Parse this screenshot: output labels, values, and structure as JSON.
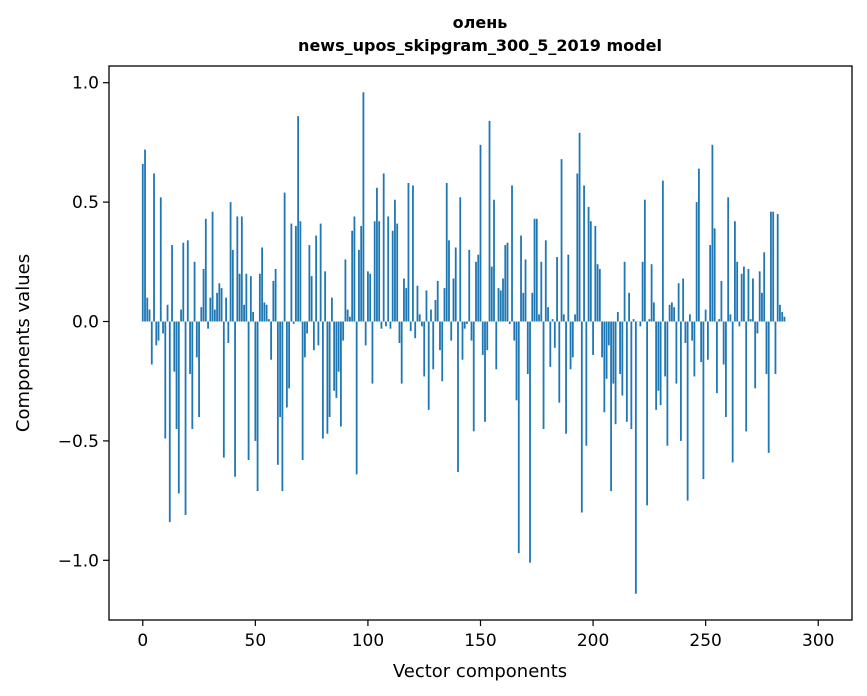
{
  "chart_data": {
    "type": "bar",
    "title_line1": "олень",
    "title_line2": "news_upos_skipgram_300_5_2019 model",
    "xlabel": "Vector components",
    "ylabel": "Components values",
    "xlim": [
      -15,
      315
    ],
    "ylim": [
      -1.25,
      1.07
    ],
    "xticks": [
      0,
      50,
      100,
      150,
      200,
      250,
      300
    ],
    "xtick_labels": [
      "0",
      "50",
      "100",
      "150",
      "200",
      "250",
      "300"
    ],
    "yticks": [
      -1.0,
      -0.5,
      0.0,
      0.5,
      1.0
    ],
    "ytick_labels": [
      "−1.0",
      "−0.5",
      "0.0",
      "0.5",
      "1.0"
    ],
    "bar_color": "#1f77b4",
    "grid": false,
    "legend": "none",
    "values": [
      0.66,
      0.72,
      0.1,
      0.05,
      -0.18,
      0.62,
      -0.1,
      -0.08,
      0.52,
      -0.05,
      -0.49,
      0.07,
      -0.84,
      0.32,
      -0.21,
      -0.45,
      -0.72,
      0.05,
      0.33,
      -0.81,
      0.34,
      -0.22,
      -0.45,
      0.25,
      -0.15,
      -0.4,
      0.06,
      0.22,
      0.43,
      -0.03,
      0.1,
      0.46,
      0.05,
      0.12,
      0.16,
      0.14,
      -0.57,
      0.1,
      -0.09,
      0.5,
      0.3,
      -0.65,
      0.44,
      0.2,
      0.44,
      0.07,
      0.2,
      -0.58,
      0.19,
      0.04,
      -0.5,
      -0.71,
      0.2,
      0.31,
      0.08,
      0.07,
      0.01,
      -0.16,
      0.17,
      0.22,
      -0.6,
      -0.4,
      -0.71,
      0.54,
      -0.36,
      -0.28,
      0.41,
      -0.01,
      0.4,
      0.86,
      0.42,
      -0.58,
      -0.15,
      -0.05,
      0.32,
      0.19,
      -0.12,
      0.36,
      -0.1,
      0.41,
      -0.49,
      0.21,
      -0.47,
      -0.4,
      0.1,
      -0.29,
      -0.32,
      -0.21,
      -0.44,
      -0.08,
      0.26,
      0.05,
      0.02,
      0.38,
      0.44,
      -0.64,
      0.3,
      0.4,
      0.96,
      -0.1,
      0.21,
      0.2,
      -0.26,
      0.42,
      0.56,
      0.42,
      -0.03,
      0.62,
      -0.02,
      0.44,
      -0.03,
      0.38,
      0.51,
      0.41,
      -0.09,
      -0.26,
      0.18,
      0.14,
      0.58,
      -0.04,
      0.57,
      -0.07,
      0.15,
      0.03,
      -0.02,
      -0.23,
      0.13,
      -0.37,
      0.05,
      -0.2,
      0.09,
      0.17,
      -0.12,
      -0.25,
      0.14,
      0.58,
      0.34,
      -0.08,
      0.18,
      0.31,
      -0.63,
      0.52,
      -0.16,
      -0.03,
      -0.01,
      0.3,
      -0.08,
      -0.46,
      0.25,
      0.28,
      0.74,
      -0.14,
      -0.42,
      -0.12,
      0.84,
      0.23,
      0.51,
      -0.2,
      0.14,
      0.13,
      0.18,
      0.32,
      0.33,
      -0.01,
      0.57,
      -0.08,
      -0.33,
      -0.97,
      0.36,
      0.12,
      0.26,
      -0.22,
      -1.01,
      0.12,
      0.43,
      0.43,
      0.03,
      0.25,
      -0.45,
      0.34,
      0.06,
      -0.19,
      0.01,
      -0.11,
      0.27,
      -0.34,
      0.68,
      0.03,
      -0.47,
      0.28,
      -0.2,
      -0.15,
      0.03,
      0.62,
      0.79,
      -0.8,
      0.57,
      -0.52,
      0.48,
      0.42,
      -0.14,
      0.4,
      0.24,
      0.22,
      -0.15,
      -0.38,
      -0.24,
      -0.1,
      -0.71,
      -0.26,
      -0.43,
      0.04,
      -0.22,
      -0.31,
      0.25,
      -0.42,
      0.12,
      -0.45,
      0.01,
      -1.14,
      0.0,
      -0.02,
      0.25,
      0.51,
      -0.77,
      0.01,
      0.24,
      0.08,
      -0.37,
      -0.29,
      -0.35,
      0.59,
      -0.23,
      -0.52,
      0.07,
      0.08,
      0.06,
      -0.26,
      0.16,
      -0.5,
      0.18,
      -0.09,
      -0.75,
      0.03,
      -0.08,
      -0.23,
      0.5,
      0.64,
      -0.17,
      -0.66,
      0.05,
      -0.16,
      0.32,
      0.74,
      0.39,
      -0.3,
      0.01,
      0.17,
      -0.18,
      -0.4,
      0.52,
      0.03,
      -0.59,
      0.42,
      0.25,
      -0.02,
      0.2,
      0.23,
      -0.46,
      0.22,
      0.01,
      0.18,
      -0.28,
      -0.05,
      0.21,
      0.12,
      0.29,
      -0.22,
      -0.55,
      0.46,
      0.46,
      -0.22,
      0.45,
      0.07,
      0.04,
      0.02
    ]
  }
}
